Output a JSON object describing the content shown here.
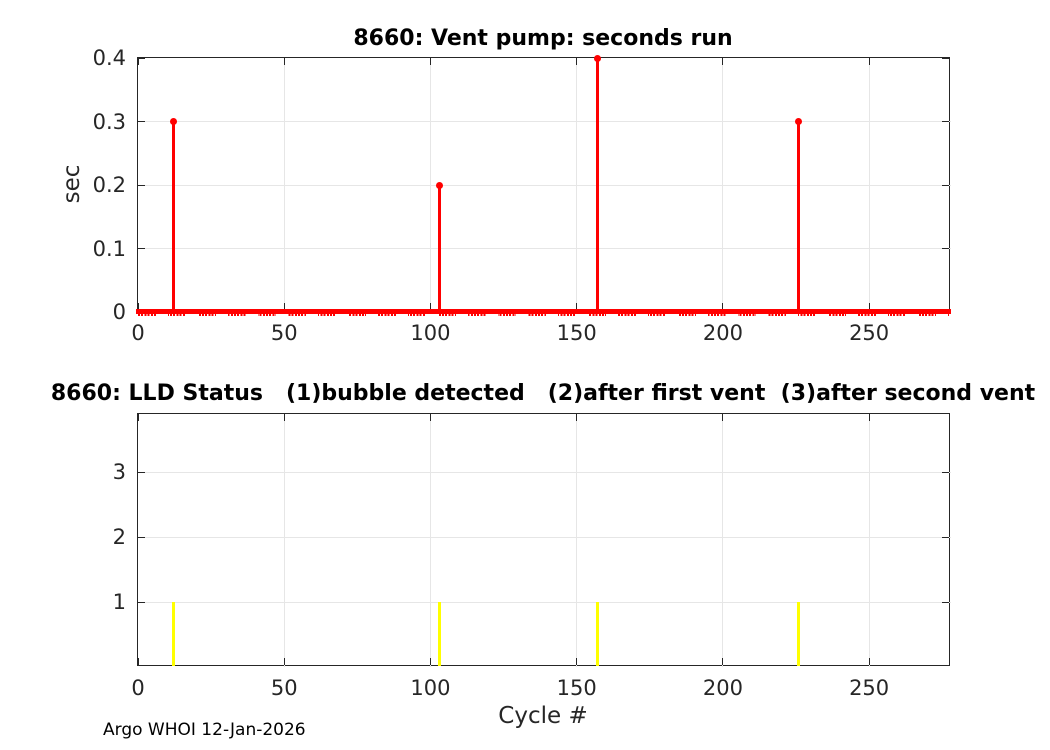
{
  "figure": {
    "footer": "Argo WHOI 12-Jan-2026",
    "background": "#ffffff",
    "colors": {
      "stem_red": "#ff0000",
      "status_yellow": "#ffff00",
      "grid": "#e6e6e6",
      "axis": "#262626",
      "tick_text": "#262626",
      "title_text": "#000000"
    }
  },
  "chart_data": [
    {
      "type": "stem",
      "title": "8660: Vent pump: seconds run",
      "xlabel": "",
      "ylabel": "sec",
      "xlim": [
        0,
        278
      ],
      "ylim": [
        0,
        0.4
      ],
      "xticks": [
        0,
        50,
        100,
        150,
        200,
        250
      ],
      "yticks": [
        0,
        0.1,
        0.2,
        0.3,
        0.4
      ],
      "grid": true,
      "color": "#ff0000",
      "baseline_value": 0,
      "points": [
        {
          "x": 12,
          "y": 0.3
        },
        {
          "x": 103,
          "y": 0.2
        },
        {
          "x": 157,
          "y": 0.4
        },
        {
          "x": 226,
          "y": 0.3
        }
      ]
    },
    {
      "type": "bar",
      "title": "8660: LLD Status   (1)bubble detected   (2)after first vent  (3)after second vent",
      "xlabel": "Cycle #",
      "ylabel": "",
      "xlim": [
        0,
        278
      ],
      "ylim": [
        0,
        3.9
      ],
      "xticks": [
        0,
        50,
        100,
        150,
        200,
        250
      ],
      "yticks": [
        1,
        2,
        3
      ],
      "grid": true,
      "color": "#ffff00",
      "points": [
        {
          "x": 12,
          "y": 1
        },
        {
          "x": 103,
          "y": 1
        },
        {
          "x": 157,
          "y": 1
        },
        {
          "x": 226,
          "y": 1
        }
      ]
    }
  ]
}
